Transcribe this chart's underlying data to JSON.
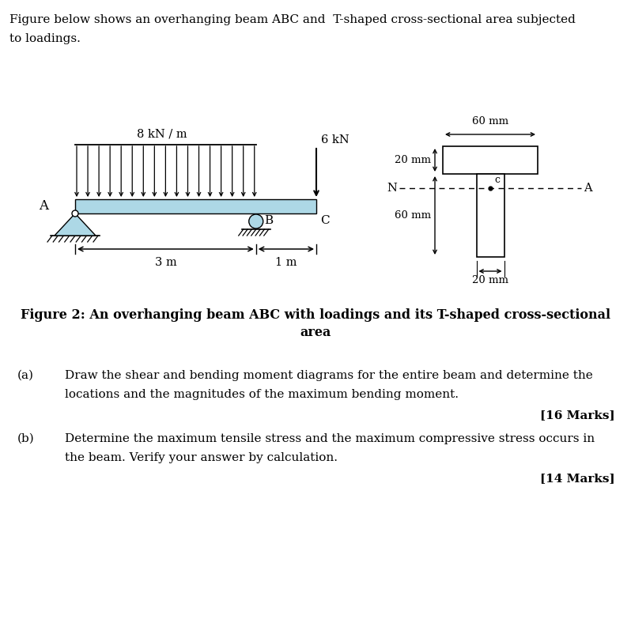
{
  "bg_color": "#ffffff",
  "text_color": "#000000",
  "intro_line1": "Figure below shows an overhanging beam ABC and  T-shaped cross-sectional area subjected",
  "intro_line2": "to loadings.",
  "figure_caption_line1": "Figure 2: An overhanging beam ABC with loadings and its T-shaped cross-sectional",
  "figure_caption_line2": "area",
  "beam_color": "#add8e6",
  "beam_outline": "#000000",
  "q_label": "8 kN / m",
  "p_label": "6 kN",
  "dim_A_to_B": "3 m",
  "dim_B_to_C": "1 m",
  "label_A": "A",
  "label_B": "B",
  "label_C": "C",
  "label_N": "N",
  "label_c": "c",
  "label_dash_A": "A",
  "cross_60mm_top": "60 mm",
  "cross_20mm_flange": "20 mm",
  "cross_60mm_web": "60 mm",
  "cross_20mm_web_w": "20 mm",
  "part_a_label": "(a)",
  "part_a_text_line1": "Draw the shear and bending moment diagrams for the entire beam and determine the",
  "part_a_text_line2": "locations and the magnitudes of the maximum bending moment.",
  "part_a_marks": "[16 Marks]",
  "part_b_label": "(b)",
  "part_b_text_line1": "Determine the maximum tensile stress and the maximum compressive stress occurs in",
  "part_b_text_line2": "the beam. Verify your answer by calculation.",
  "part_b_marks": "[14 Marks]"
}
